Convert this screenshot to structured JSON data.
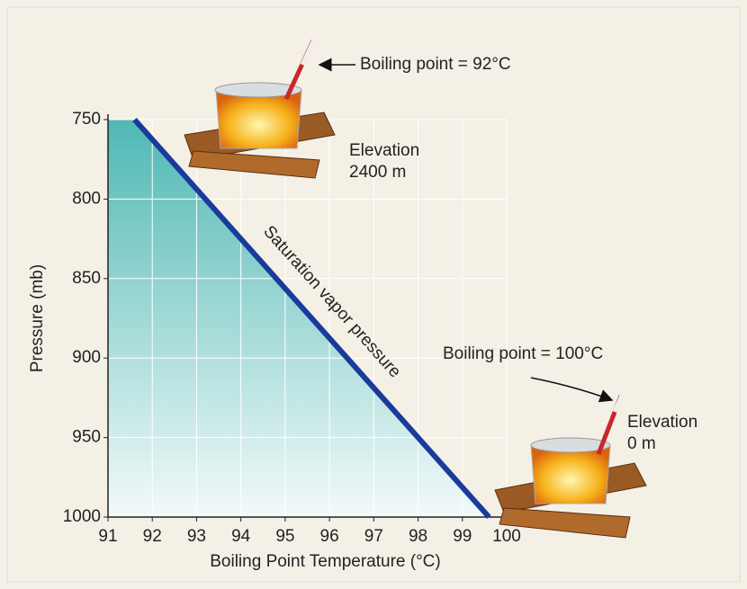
{
  "chart_data": {
    "type": "line",
    "xlabel": "Boiling Point Temperature (°C)",
    "ylabel": "Pressure (mb)",
    "x": [
      91.6,
      99.6
    ],
    "series": [
      {
        "name": "Saturation vapor pressure",
        "color": "#1a3a9c",
        "values": [
          750,
          1000
        ]
      }
    ],
    "xlim": [
      91,
      100
    ],
    "xticks": [
      91,
      92,
      93,
      94,
      95,
      96,
      97,
      98,
      99,
      100
    ],
    "ylim": [
      1000,
      750
    ],
    "yticks": [
      750,
      800,
      850,
      900,
      950,
      1000
    ],
    "grid": true,
    "annotations": [
      "Boiling point = 92°C",
      "Elevation",
      "2400 m",
      "Boiling point = 100°C",
      "Elevation",
      "0 m"
    ]
  }
}
